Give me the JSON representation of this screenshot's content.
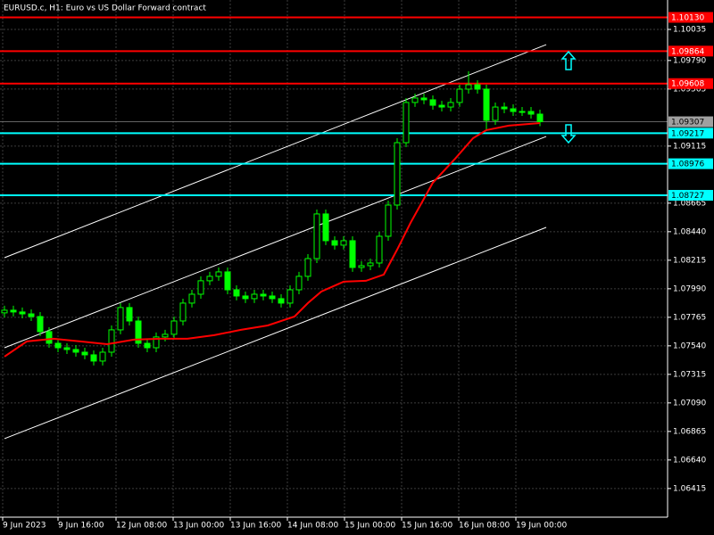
{
  "chart_data": {
    "type": "candlestick",
    "title": "EURUSD.c, H1:  Euro vs US Dollar Forward contract",
    "candle_color": "#00ff00",
    "open": [
      1.078,
      1.07821,
      1.07807,
      1.07792,
      1.07771,
      1.07652,
      1.0756,
      1.07525,
      1.07511,
      1.0749,
      1.07469,
      1.0742,
      1.0749,
      1.07666,
      1.07842,
      1.07736,
      1.0756,
      1.07525,
      1.0761,
      1.07631,
      1.07736,
      1.07877,
      1.07947,
      1.08053,
      1.08088,
      1.08123,
      1.07982,
      1.07933,
      1.07912,
      1.07947,
      1.07933,
      1.07912,
      1.07877,
      1.07982,
      1.08088,
      1.08228,
      1.0858,
      1.08369,
      1.08334,
      1.08369,
      1.08158,
      1.08172,
      1.08193,
      1.08404,
      1.0865,
      1.09142,
      1.09459,
      1.09494,
      1.0948,
      1.09437,
      1.09423,
      1.09459,
      1.09564,
      1.09599,
      1.09564,
      1.09318,
      1.09423,
      1.09409,
      1.09388,
      1.09388,
      1.09367
    ],
    "high": [
      1.07856,
      1.07856,
      1.07842,
      1.07827,
      1.07806,
      1.07687,
      1.07595,
      1.0756,
      1.07546,
      1.07525,
      1.07504,
      1.07525,
      1.07701,
      1.07877,
      1.07877,
      1.07771,
      1.07595,
      1.07645,
      1.07666,
      1.07771,
      1.07912,
      1.07982,
      1.08088,
      1.08123,
      1.08158,
      1.08158,
      1.08017,
      1.07968,
      1.07982,
      1.07982,
      1.07968,
      1.07947,
      1.08017,
      1.08123,
      1.08263,
      1.08615,
      1.08615,
      1.08404,
      1.08404,
      1.08404,
      1.08207,
      1.08228,
      1.08439,
      1.08685,
      1.09177,
      1.09494,
      1.09529,
      1.09529,
      1.09515,
      1.09472,
      1.09494,
      1.09599,
      1.09705,
      1.09634,
      1.09599,
      1.09458,
      1.09458,
      1.09444,
      1.09423,
      1.09423,
      1.09402
    ],
    "low": [
      1.07765,
      1.07772,
      1.07757,
      1.07736,
      1.07617,
      1.07525,
      1.0749,
      1.07476,
      1.07455,
      1.07434,
      1.07385,
      1.07385,
      1.07455,
      1.07631,
      1.07701,
      1.07525,
      1.0749,
      1.0749,
      1.07575,
      1.07596,
      1.07701,
      1.07842,
      1.07912,
      1.08018,
      1.08053,
      1.07947,
      1.07898,
      1.07877,
      1.07877,
      1.07898,
      1.07877,
      1.07842,
      1.07842,
      1.07947,
      1.08053,
      1.08193,
      1.08334,
      1.08299,
      1.08299,
      1.08123,
      1.08123,
      1.08137,
      1.08158,
      1.08369,
      1.08615,
      1.09107,
      1.09424,
      1.09445,
      1.09402,
      1.09388,
      1.09388,
      1.09424,
      1.09529,
      1.09529,
      1.0924,
      1.09283,
      1.09374,
      1.09353,
      1.09353,
      1.09332,
      1.09272
    ],
    "close": [
      1.07821,
      1.07807,
      1.07792,
      1.07771,
      1.07652,
      1.0756,
      1.07525,
      1.07511,
      1.0749,
      1.07469,
      1.0742,
      1.0749,
      1.07666,
      1.07842,
      1.07736,
      1.0756,
      1.07525,
      1.0761,
      1.07631,
      1.07736,
      1.07877,
      1.07947,
      1.08053,
      1.08088,
      1.08123,
      1.07982,
      1.07933,
      1.07912,
      1.07947,
      1.07933,
      1.07912,
      1.07877,
      1.07982,
      1.08088,
      1.08228,
      1.0858,
      1.08369,
      1.08334,
      1.08369,
      1.08158,
      1.08172,
      1.08193,
      1.08404,
      1.0865,
      1.09142,
      1.09459,
      1.09494,
      1.0948,
      1.09437,
      1.09423,
      1.09459,
      1.09564,
      1.09599,
      1.09564,
      1.09318,
      1.09423,
      1.09409,
      1.09388,
      1.09388,
      1.09367,
      1.09307
    ],
    "moving_average": {
      "color": "#ff0000",
      "x": [
        0,
        2.5,
        5.5,
        8.5,
        11.5,
        14.5,
        17.5,
        20.5,
        23.5,
        26.5,
        29.5,
        32.5,
        34,
        35.5,
        38,
        40.5,
        42.5,
        44,
        45.5,
        48,
        50.5,
        52.5,
        54,
        56.5,
        60
      ],
      "values": [
        1.07455,
        1.07575,
        1.07596,
        1.07575,
        1.07553,
        1.07589,
        1.07596,
        1.07596,
        1.07624,
        1.07666,
        1.07701,
        1.07771,
        1.07877,
        1.07968,
        1.08046,
        1.08053,
        1.08102,
        1.08299,
        1.0851,
        1.08826,
        1.09016,
        1.09177,
        1.09241,
        1.09276,
        1.09297
      ]
    },
    "channel_color": "#ffffff",
    "channel": [
      {
        "x": [
          0,
          60.7
        ],
        "values": [
          1.08235,
          1.09915
        ]
      },
      {
        "x": [
          0,
          60.7
        ],
        "values": [
          1.07525,
          1.09191
        ]
      },
      {
        "x": [
          0,
          60.7
        ],
        "values": [
          1.06808,
          1.08474
        ]
      }
    ],
    "levels": [
      {
        "value": 1.1013,
        "label": "1.10130",
        "color": "#ff0000"
      },
      {
        "value": 1.09864,
        "label": "1.09864",
        "color": "#ff0000"
      },
      {
        "value": 1.09608,
        "label": "1.09608",
        "color": "#ff0000"
      },
      {
        "value": 1.09217,
        "label": "1.09217",
        "color": "#00ffff"
      },
      {
        "value": 1.08976,
        "label": "1.08976",
        "color": "#00ffff"
      },
      {
        "value": 1.08727,
        "label": "1.08727",
        "color": "#00ffff"
      }
    ],
    "current_price": {
      "value": 1.09307,
      "color": "#a0a0a0"
    },
    "xlim": [
      -0.5,
      74.3
    ],
    "xticks": [
      {
        "value": -0.2,
        "label": "9 Jun 2023"
      },
      {
        "value": 6,
        "label": "9 Jun 16:00"
      },
      {
        "value": 12.5,
        "label": "12 Jun 08:00"
      },
      {
        "value": 18.9,
        "label": "13 Jun 00:00"
      },
      {
        "value": 25.3,
        "label": "13 Jun 16:00"
      },
      {
        "value": 31.7,
        "label": "14 Jun 08:00"
      },
      {
        "value": 38.1,
        "label": "15 Jun 00:00"
      },
      {
        "value": 44.5,
        "label": "15 Jun 16:00"
      },
      {
        "value": 50.9,
        "label": "16 Jun 08:00"
      },
      {
        "value": 57.3,
        "label": "19 Jun 00:00"
      }
    ],
    "ylim": [
      1.06189,
      1.10267
    ],
    "yticks": [
      1.10035,
      {
        "value": 1.0979,
        "label": "1.09790"
      },
      1.09565,
      1.09115,
      1.08665,
      {
        "value": 1.0844,
        "label": "1.08440"
      },
      1.08215,
      {
        "value": 1.0799,
        "label": "1.07990"
      },
      1.07765,
      {
        "value": 1.0754,
        "label": "1.07540"
      },
      1.07315,
      {
        "value": 1.0709,
        "label": "1.07090"
      },
      1.06865,
      {
        "value": 1.0664,
        "label": "1.06640"
      },
      1.06415
    ],
    "grid": true
  }
}
